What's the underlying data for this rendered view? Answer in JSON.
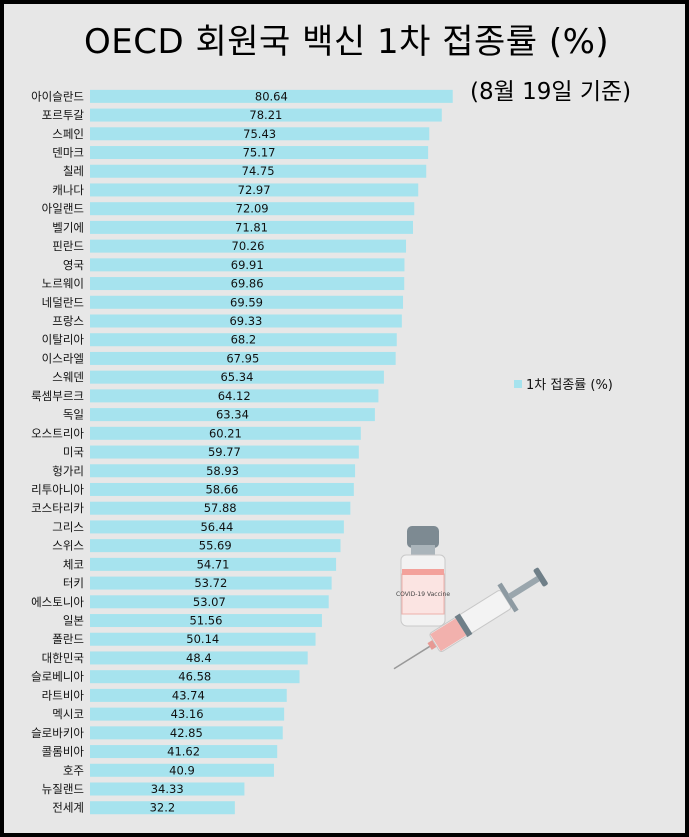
{
  "title": "OECD 회원국 백신 1차 접종률 (%)",
  "subtitle": "(8월 19일 기준)",
  "colors": {
    "bar": "#a6e3ee",
    "background": "#e7e7e7",
    "frame": "#000000"
  },
  "chart_data": {
    "type": "bar",
    "orientation": "horizontal",
    "legend": {
      "label": "1차 접종률 (%)",
      "position": "right"
    },
    "xlim": [
      0,
      100
    ],
    "grid": false,
    "categories": [
      "아이슬란드",
      "포르투갈",
      "스페인",
      "덴마크",
      "칠레",
      "캐나다",
      "아일랜드",
      "벨기에",
      "핀란드",
      "영국",
      "노르웨이",
      "네덜란드",
      "프랑스",
      "이탈리아",
      "이스라엘",
      "스웨덴",
      "룩셈부르크",
      "독일",
      "오스트리아",
      "미국",
      "헝가리",
      "리투아니아",
      "코스타리카",
      "그리스",
      "스위스",
      "체코",
      "터키",
      "에스토니아",
      "일본",
      "폴란드",
      "대한민국",
      "슬로베니아",
      "라트비아",
      "멕시코",
      "슬로바키아",
      "콜롬비아",
      "호주",
      "뉴질랜드",
      "전세계"
    ],
    "series": [
      {
        "name": "1차 접종률 (%)",
        "values": [
          80.64,
          78.21,
          75.43,
          75.17,
          74.75,
          72.97,
          72.09,
          71.81,
          70.26,
          69.91,
          69.86,
          69.59,
          69.33,
          68.2,
          67.95,
          65.34,
          64.12,
          63.34,
          60.21,
          59.77,
          58.93,
          58.66,
          57.88,
          56.44,
          55.69,
          54.71,
          53.72,
          53.07,
          51.56,
          50.14,
          48.4,
          46.58,
          43.74,
          43.16,
          42.85,
          41.62,
          40.9,
          34.33,
          32.2
        ]
      }
    ]
  },
  "illustration": {
    "vial_label": "COVID-19 Vaccine"
  }
}
